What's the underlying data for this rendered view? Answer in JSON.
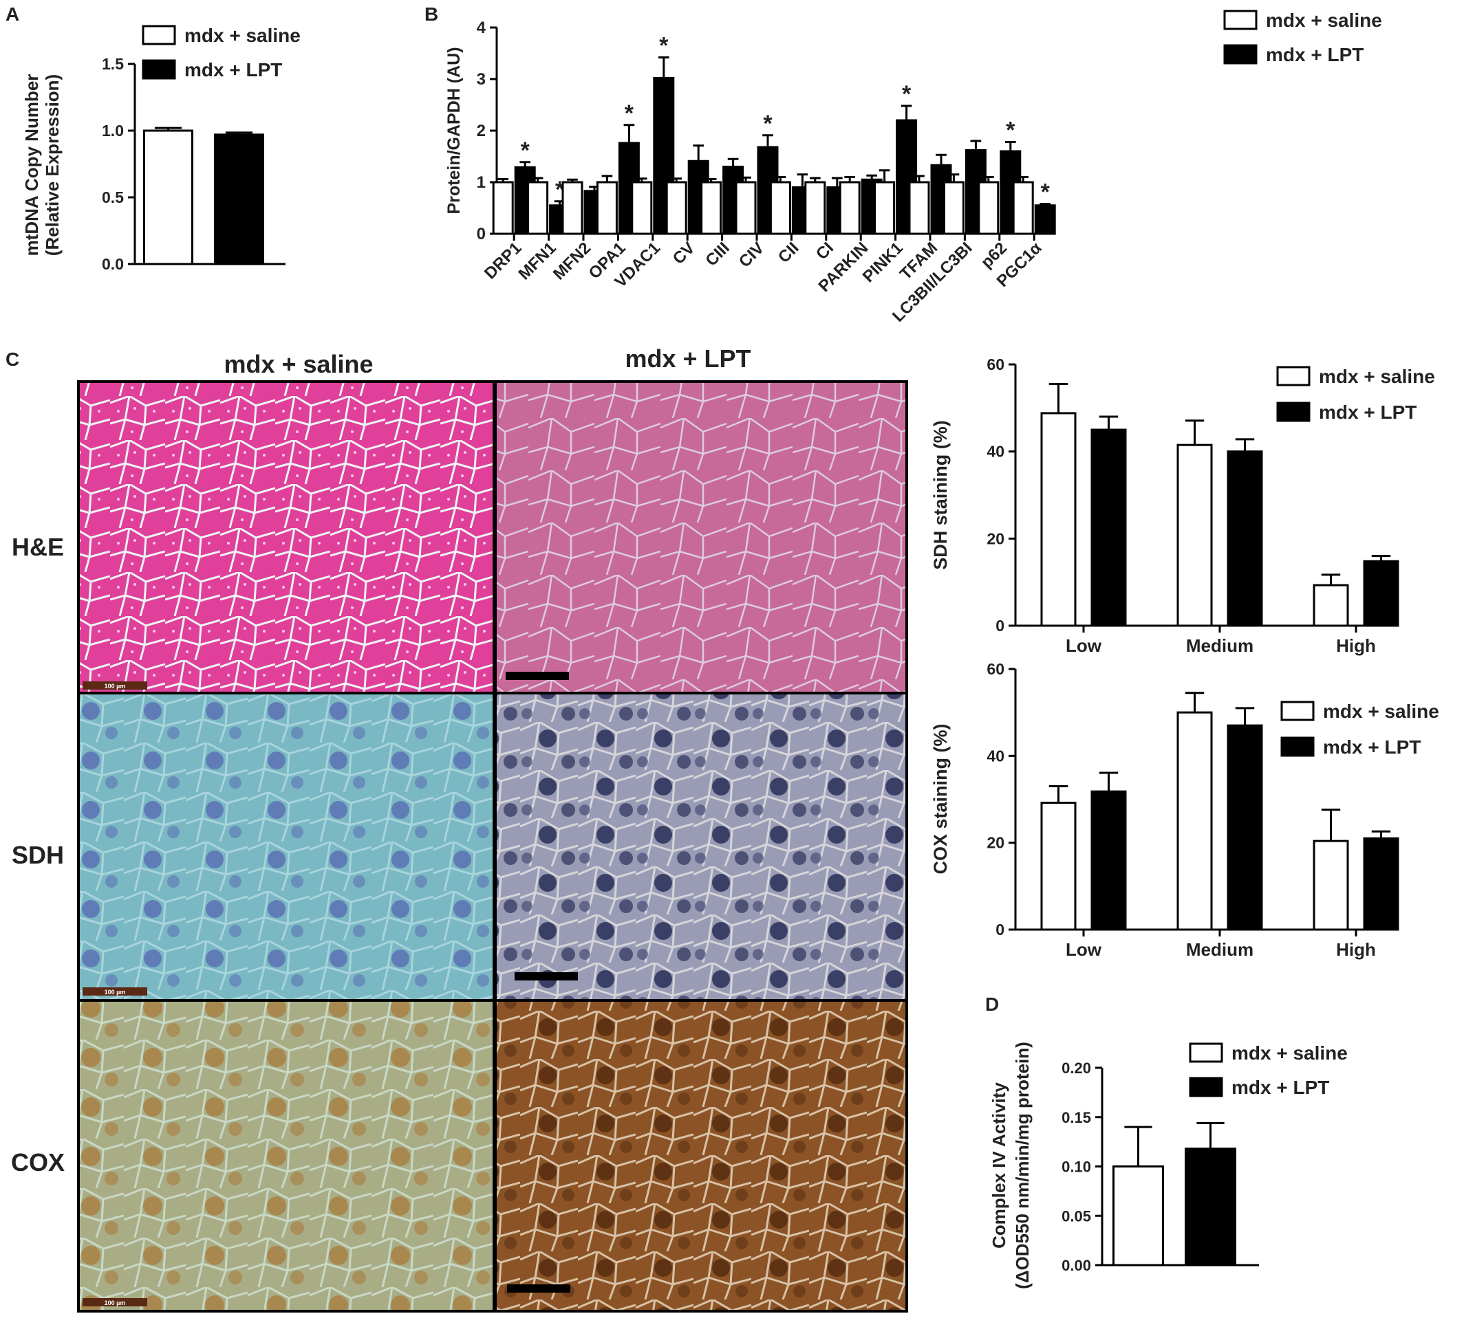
{
  "panel_labels": {
    "A": "A",
    "B": "B",
    "C": "C",
    "D": "D"
  },
  "legend": {
    "saline": "mdx + saline",
    "lpt": "mdx + LPT"
  },
  "significance_mark": "*",
  "colors": {
    "saline_fill": "#ffffff",
    "lpt_fill": "#000000",
    "stroke": "#000000"
  },
  "micrographs": {
    "columns": [
      "mdx + saline",
      "mdx + LPT"
    ],
    "rows": [
      "H&E",
      "SDH",
      "COX"
    ],
    "scalebar_label": "100 µm"
  },
  "chart_data": [
    {
      "id": "A",
      "type": "bar",
      "title": "",
      "xlabel": "",
      "ylabel_lines": [
        "mtDNA Copy Number",
        "(Relative Expression)"
      ],
      "ylim": [
        0,
        1.5
      ],
      "yticks": [
        "0.0",
        "0.5",
        "1.0",
        "1.5"
      ],
      "categories": [
        ""
      ],
      "series": [
        {
          "name": "mdx + saline",
          "values": [
            1.0
          ],
          "errors": [
            0.02
          ]
        },
        {
          "name": "mdx + LPT",
          "values": [
            0.97
          ],
          "errors": [
            0.015
          ]
        }
      ],
      "grid": false,
      "legend_position": "top-right"
    },
    {
      "id": "B",
      "type": "bar",
      "title": "",
      "xlabel": "",
      "ylabel": "Protein/GAPDH (AU)",
      "ylim": [
        0,
        4
      ],
      "yticks": [
        "0",
        "1",
        "2",
        "3",
        "4"
      ],
      "categories": [
        "DRP1",
        "MFN1",
        "MFN2",
        "OPA1",
        "VDAC1",
        "CV",
        "CIII",
        "CIV",
        "CII",
        "CI",
        "PARKIN",
        "PINK1",
        "TFAM",
        "LC3BII/LC3BI",
        "p62",
        "PGC1α"
      ],
      "series": [
        {
          "name": "mdx + saline",
          "values": [
            1,
            1,
            1,
            1,
            1,
            1,
            1,
            1,
            1,
            1,
            1,
            1,
            1,
            1,
            1,
            1
          ],
          "errors": [
            0.06,
            0.08,
            0.05,
            0.12,
            0.07,
            0.07,
            0.06,
            0.09,
            0.1,
            0.08,
            0.1,
            0.23,
            0.12,
            0.15,
            0.1,
            0.1
          ]
        },
        {
          "name": "mdx + LPT",
          "values": [
            1.29,
            0.55,
            0.83,
            1.76,
            3.02,
            1.41,
            1.3,
            1.68,
            0.9,
            0.9,
            1.05,
            2.2,
            1.33,
            1.62,
            1.6,
            0.55
          ],
          "errors": [
            0.1,
            0.08,
            0.08,
            0.35,
            0.4,
            0.3,
            0.15,
            0.23,
            0.25,
            0.18,
            0.08,
            0.28,
            0.2,
            0.18,
            0.18,
            0.03
          ]
        }
      ],
      "significant": [
        true,
        true,
        false,
        true,
        true,
        false,
        false,
        true,
        false,
        false,
        false,
        true,
        false,
        false,
        true,
        true
      ],
      "grid": false,
      "legend_position": "top-right"
    },
    {
      "id": "C-SDH",
      "type": "bar",
      "title": "",
      "xlabel": "",
      "ylabel": "SDH staining (%)",
      "ylim": [
        0,
        60
      ],
      "yticks": [
        "0",
        "20",
        "40",
        "60"
      ],
      "categories": [
        "Low",
        "Medium",
        "High"
      ],
      "series": [
        {
          "name": "mdx + saline",
          "values": [
            48.8,
            41.5,
            9.3
          ],
          "errors": [
            6.7,
            5.6,
            2.4
          ]
        },
        {
          "name": "mdx + LPT",
          "values": [
            45.0,
            40.0,
            14.8
          ],
          "errors": [
            3.0,
            2.8,
            1.2
          ]
        }
      ],
      "grid": false,
      "legend_position": "top-right"
    },
    {
      "id": "C-COX",
      "type": "bar",
      "title": "",
      "xlabel": "",
      "ylabel": "COX staining (%)",
      "ylim": [
        0,
        60
      ],
      "yticks": [
        "0",
        "20",
        "40",
        "60"
      ],
      "categories": [
        "Low",
        "Medium",
        "High"
      ],
      "series": [
        {
          "name": "mdx + saline",
          "values": [
            29.2,
            50.0,
            20.4
          ],
          "errors": [
            3.8,
            4.5,
            7.2
          ]
        },
        {
          "name": "mdx + LPT",
          "values": [
            31.8,
            47.0,
            21.0
          ],
          "errors": [
            4.3,
            4.0,
            1.6
          ]
        }
      ],
      "grid": false,
      "legend_position": "top-right"
    },
    {
      "id": "D",
      "type": "bar",
      "title": "",
      "xlabel": "",
      "ylabel_lines": [
        "Complex IV Activity",
        "(ΔOD550 nm/min/mg protein)"
      ],
      "ylim": [
        0,
        0.2
      ],
      "yticks": [
        "0.00",
        "0.05",
        "0.10",
        "0.15",
        "0.20"
      ],
      "categories": [
        ""
      ],
      "series": [
        {
          "name": "mdx + saline",
          "values": [
            0.1
          ],
          "errors": [
            0.04
          ]
        },
        {
          "name": "mdx + LPT",
          "values": [
            0.118
          ],
          "errors": [
            0.026
          ]
        }
      ],
      "grid": false,
      "legend_position": "top-right"
    }
  ]
}
